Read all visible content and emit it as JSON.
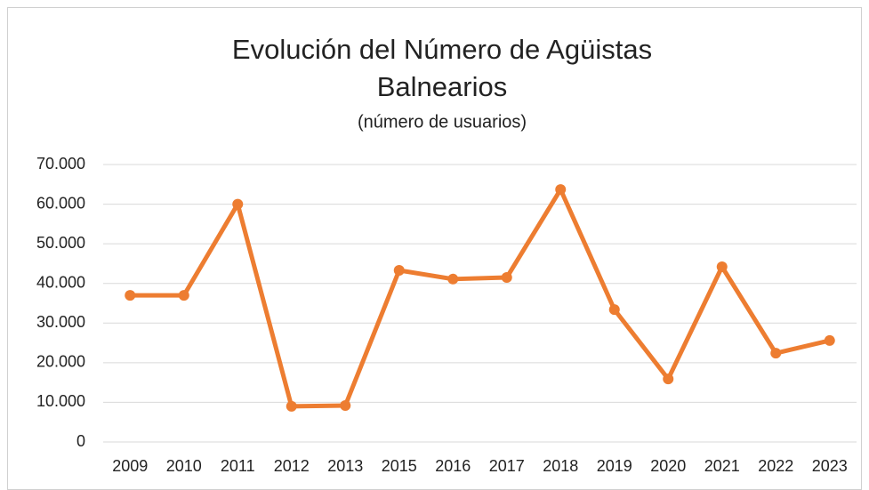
{
  "chart_data": {
    "type": "line",
    "title": [
      "Evolución del Número de Agüistas",
      "Balnearios"
    ],
    "subtitle": "(número de usuarios)",
    "categories": [
      "2009",
      "2010",
      "2011",
      "2012",
      "2013",
      "2015",
      "2016",
      "2017",
      "2018",
      "2019",
      "2020",
      "2021",
      "2022",
      "2023"
    ],
    "series": [
      {
        "name": "Agüistas",
        "color": "#ed7d31",
        "values": [
          37000,
          37000,
          60000,
          9000,
          9200,
          43300,
          41100,
          41500,
          63700,
          33400,
          15900,
          44200,
          22400,
          25600
        ]
      }
    ],
    "ylim": [
      0,
      70000
    ],
    "yticks": [
      0,
      {
        "value": 10000,
        "label": "10.000"
      },
      {
        "value": 20000,
        "label": "20.000"
      },
      {
        "value": 30000,
        "label": "30.000"
      },
      {
        "value": 40000,
        "label": "40.000"
      },
      {
        "value": 50000,
        "label": "50.000"
      },
      {
        "value": 60000,
        "label": "60.000"
      },
      {
        "value": 70000,
        "label": "70.000"
      }
    ],
    "grid": true,
    "legend": false
  }
}
